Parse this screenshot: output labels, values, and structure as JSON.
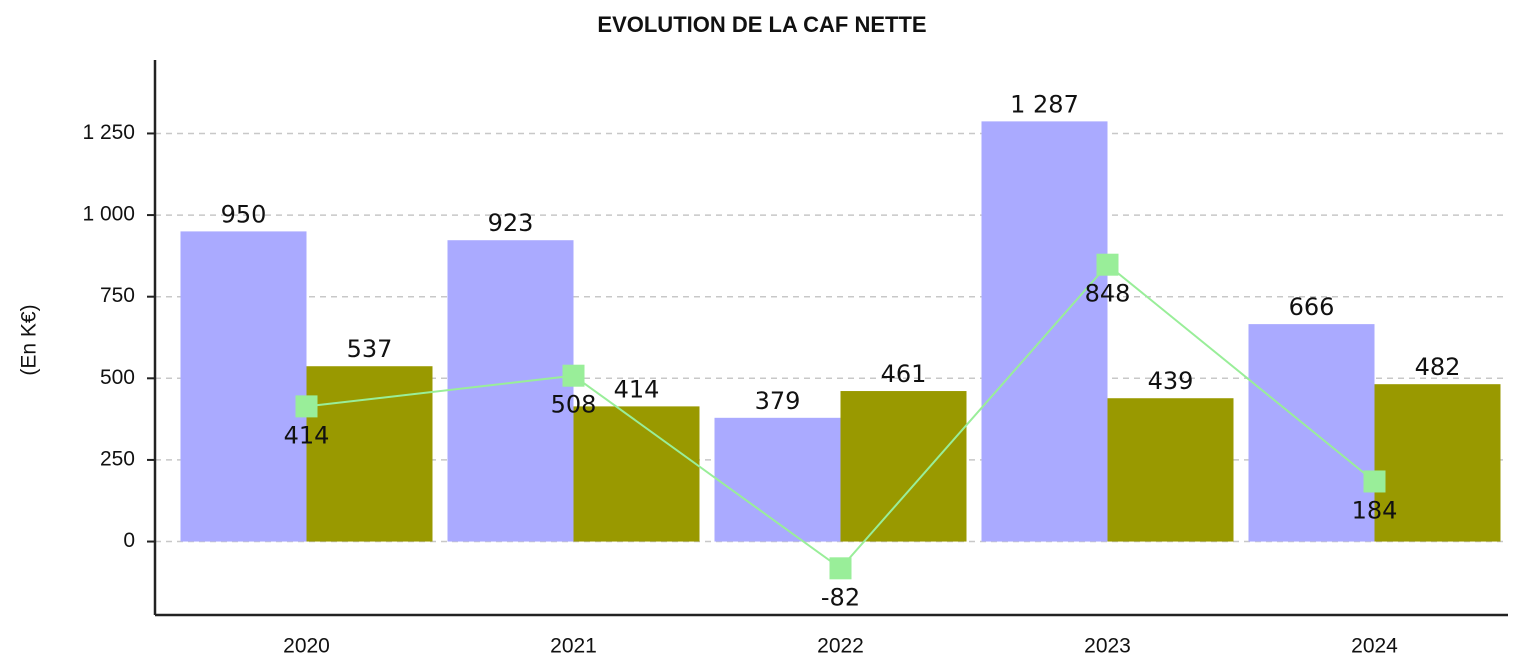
{
  "chart_data": {
    "type": "bar",
    "title": "EVOLUTION DE LA CAF NETTE",
    "y_label": "(En K€)",
    "categories": [
      "2020",
      "2021",
      "2022",
      "2023",
      "2024"
    ],
    "series": [
      {
        "color": "#aaaaff",
        "values": [
          950,
          923,
          379,
          1287,
          666
        ],
        "value_labels": [
          "950",
          "923",
          "379",
          "1 287",
          "666"
        ]
      },
      {
        "color": "#999900",
        "values": [
          537,
          414,
          461,
          439,
          482
        ]
      },
      {
        "type": "line",
        "color": "#99ee99",
        "values": [
          414,
          508,
          -82,
          848,
          184
        ]
      }
    ],
    "ylim": [
      -225,
      1475
    ],
    "yticks": [
      0,
      250,
      500,
      750,
      {
        "value": 1000,
        "label": "1 000"
      },
      {
        "value": 1250,
        "label": "1 250"
      }
    ],
    "grid": true
  }
}
